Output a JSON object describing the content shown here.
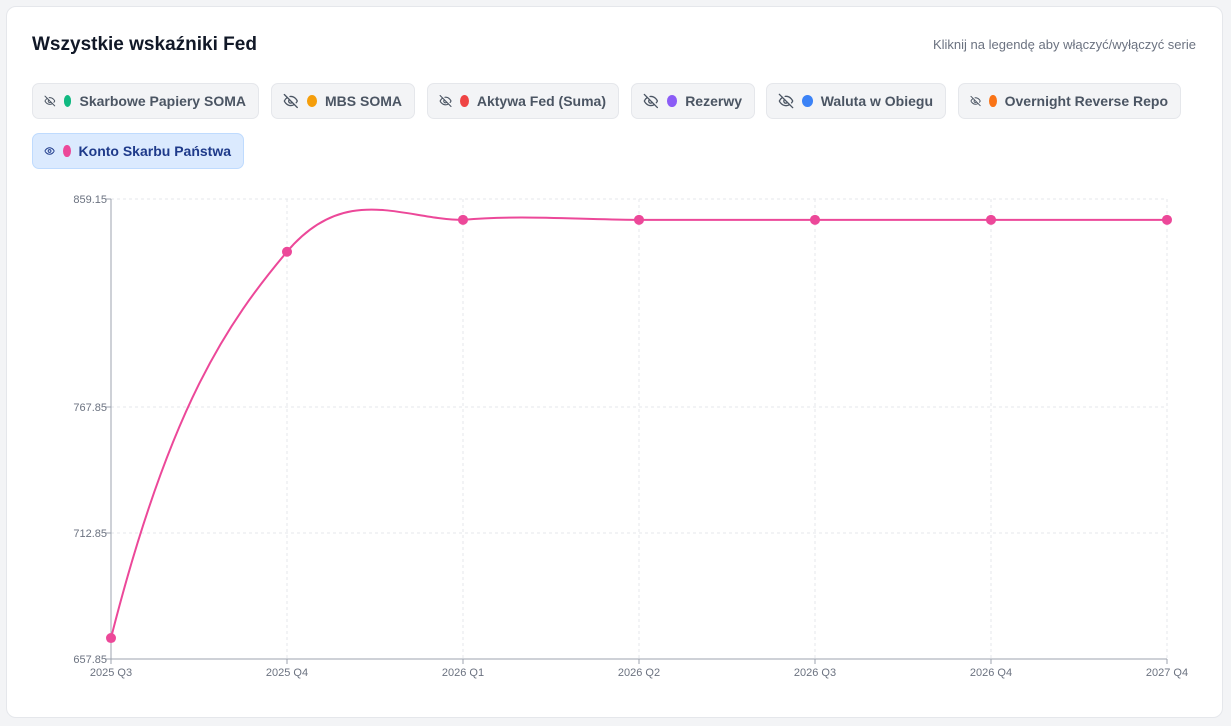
{
  "header": {
    "title": "Wszystkie wskaźniki Fed",
    "hint": "Kliknij na legendę aby włączyć/wyłączyć serie"
  },
  "legend": [
    {
      "label": "Skarbowe Papiery SOMA",
      "color": "#10b981",
      "visible": false,
      "icon": "eye-off-icon"
    },
    {
      "label": "MBS SOMA",
      "color": "#f59e0b",
      "visible": false,
      "icon": "eye-off-icon"
    },
    {
      "label": "Aktywa Fed (Suma)",
      "color": "#ef4444",
      "visible": false,
      "icon": "eye-off-icon"
    },
    {
      "label": "Rezerwy",
      "color": "#8b5cf6",
      "visible": false,
      "icon": "eye-off-icon"
    },
    {
      "label": "Waluta w Obiegu",
      "color": "#3b82f6",
      "visible": false,
      "icon": "eye-off-icon"
    },
    {
      "label": "Overnight Reverse Repo",
      "color": "#f97316",
      "visible": false,
      "icon": "eye-off-icon"
    },
    {
      "label": "Konto Skarbu Państwa",
      "color": "#ec4899",
      "visible": true,
      "icon": "eye-icon"
    }
  ],
  "chart_data": {
    "type": "line",
    "categories": [
      "2025 Q3",
      "2025 Q4",
      "2026 Q1",
      "2026 Q2",
      "2026 Q3",
      "2026 Q4",
      "2027 Q4"
    ],
    "y_ticks": [
      "859.15",
      "767.85",
      "712.85",
      "657.85"
    ],
    "ylim": [
      657.85,
      859.15
    ],
    "grid": true,
    "series": [
      {
        "name": "Konto Skarbu Państwa",
        "color": "#ec4899",
        "values": [
          667,
          836,
          850,
          850,
          850,
          850,
          850
        ]
      }
    ]
  }
}
